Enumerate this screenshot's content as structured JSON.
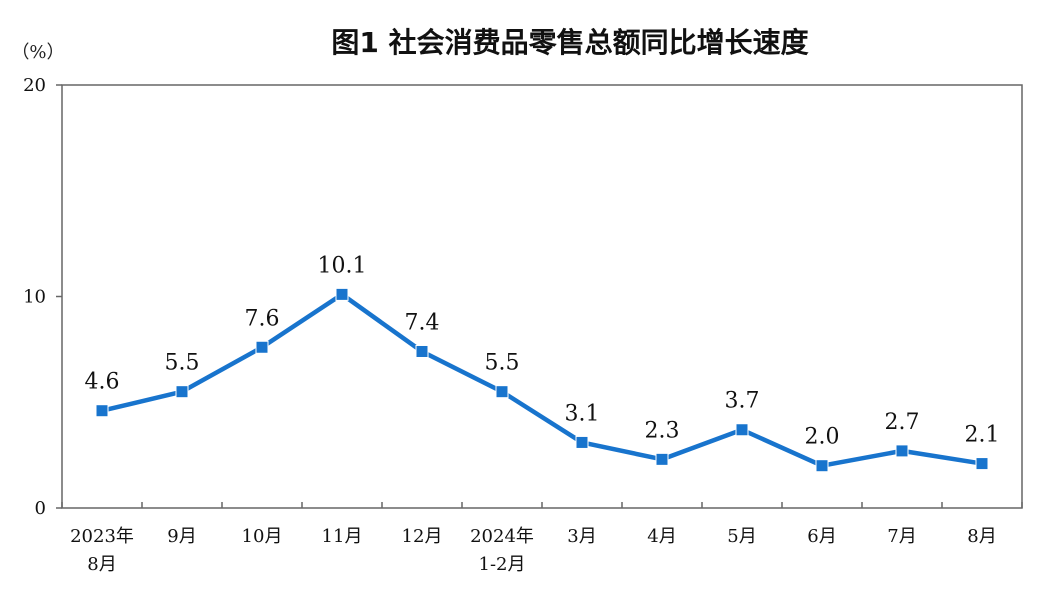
{
  "chart_data": {
    "type": "line",
    "title": "图1  社会消费品零售总额同比增长速度",
    "y_unit": "（%）",
    "x_ticks": [
      [
        "2023年",
        "8月"
      ],
      [
        "9月"
      ],
      [
        "10月"
      ],
      [
        "11月"
      ],
      [
        "12月"
      ],
      [
        "2024年",
        "1-2月"
      ],
      [
        "3月"
      ],
      [
        "4月"
      ],
      [
        "5月"
      ],
      [
        "6月"
      ],
      [
        "7月"
      ],
      [
        "8月"
      ]
    ],
    "y_ticks": [
      "0",
      "10",
      "20"
    ],
    "ylim": [
      0,
      20
    ],
    "grid": false,
    "legend": "none",
    "series": [
      {
        "values": [
          4.6,
          5.5,
          7.6,
          10.1,
          7.4,
          5.5,
          3.1,
          2.3,
          3.7,
          2.0,
          2.7,
          2.1
        ],
        "labels": [
          "4.6",
          "5.5",
          "7.6",
          "10.1",
          "7.4",
          "5.5",
          "3.1",
          "2.3",
          "3.7",
          "2.0",
          "2.7",
          "2.1"
        ],
        "color": "#1874CD"
      }
    ]
  }
}
